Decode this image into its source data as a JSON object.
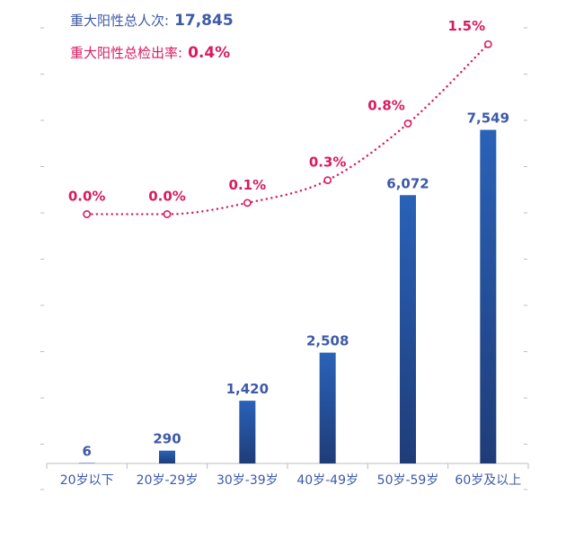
{
  "legend": {
    "count_label": "重大阳性总人次:",
    "count_value": "17,845",
    "rate_label": "重大阳性总检出率:",
    "rate_value": "0.4%"
  },
  "colors": {
    "bar_top": "#2a62b8",
    "bar_bottom": "#1f3c78",
    "bar_label": "#3d5aa8",
    "line": "#d81b60",
    "axis": "#bdbdbd"
  },
  "chart_data": {
    "type": "bar",
    "categories": [
      "20岁以下",
      "20岁-29岁",
      "30岁-39岁",
      "40岁-49岁",
      "50岁-59岁",
      "60岁及以上"
    ],
    "series": [
      {
        "values": [
          6,
          290,
          1420,
          2508,
          6072,
          7549
        ],
        "labels": [
          "6",
          "290",
          "1,420",
          "2,508",
          "6,072",
          "7,549"
        ]
      },
      {
        "type": "line",
        "axis": "secondary",
        "values": [
          0.0,
          0.0,
          0.1,
          0.3,
          0.8,
          1.5
        ],
        "labels": [
          "0.0%",
          "0.0%",
          "0.1%",
          "0.3%",
          "0.8%",
          "1.5%"
        ]
      }
    ],
    "ylim": [
      0,
      10000
    ],
    "y2lim": [
      -2.2,
      1.7
    ],
    "grid": false,
    "legend": "top-left"
  }
}
